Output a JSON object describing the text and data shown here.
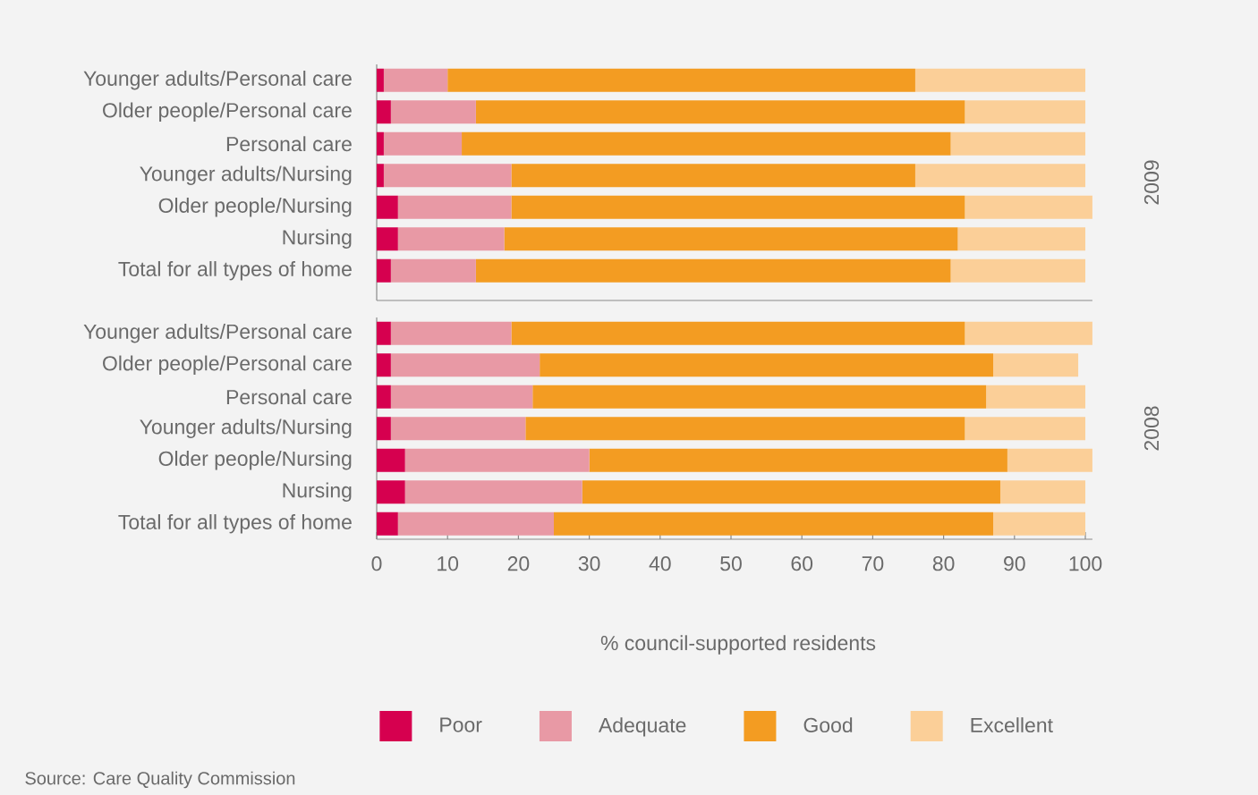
{
  "chart_data": [
    {
      "type": "bar",
      "orientation": "horizontal",
      "stacked": true,
      "y2label": "2009",
      "tick_labels": "y",
      "xlim": [
        0,
        101
      ],
      "xticks": [
        0,
        10,
        20,
        30,
        40,
        50,
        60,
        70,
        80,
        90,
        100
      ],
      "categories": [
        "Younger adults/Personal care",
        "Older people/Personal care",
        "Personal care",
        "Younger adults/Nursing",
        "Older people/Nursing",
        "Nursing",
        "Total for all types of home"
      ],
      "series": [
        {
          "color": "#d6004f",
          "values": [
            1,
            2,
            1,
            1,
            3,
            3,
            2
          ]
        },
        {
          "color": "#e899a5",
          "values": [
            9,
            12,
            11,
            18,
            16,
            15,
            12
          ]
        },
        {
          "color": "#f39c22",
          "values": [
            66,
            69,
            69,
            57,
            64,
            64,
            67
          ]
        },
        {
          "color": "#fbcf98",
          "values": [
            24,
            17,
            19,
            24,
            18,
            18,
            19
          ]
        }
      ]
    },
    {
      "type": "bar",
      "orientation": "horizontal",
      "stacked": true,
      "y2label": "2008",
      "xlabel": "% council-supported residents",
      "legend": "bottom",
      "xlim": [
        0,
        101
      ],
      "xticks": [
        0,
        10,
        20,
        30,
        40,
        50,
        60,
        70,
        80,
        90,
        100
      ],
      "categories": [
        "Younger adults/Personal care",
        "Older people/Personal care",
        "Personal care",
        "Younger adults/Nursing",
        "Older people/Nursing",
        "Nursing",
        "Total for all types of home"
      ],
      "series": [
        {
          "name": "Poor",
          "color": "#d6004f",
          "values": [
            2,
            2,
            2,
            2,
            4,
            4,
            3
          ]
        },
        {
          "name": "Adequate",
          "color": "#e899a5",
          "values": [
            17,
            21,
            20,
            19,
            26,
            25,
            22
          ]
        },
        {
          "name": "Good",
          "color": "#f39c22",
          "values": [
            64,
            64,
            64,
            62,
            59,
            59,
            62
          ]
        },
        {
          "name": "Excellent",
          "color": "#fbcf98",
          "values": [
            18,
            12,
            14,
            17,
            12,
            12,
            13
          ]
        }
      ],
      "annotations": [
        "Source: Care Quality Commission"
      ]
    }
  ]
}
